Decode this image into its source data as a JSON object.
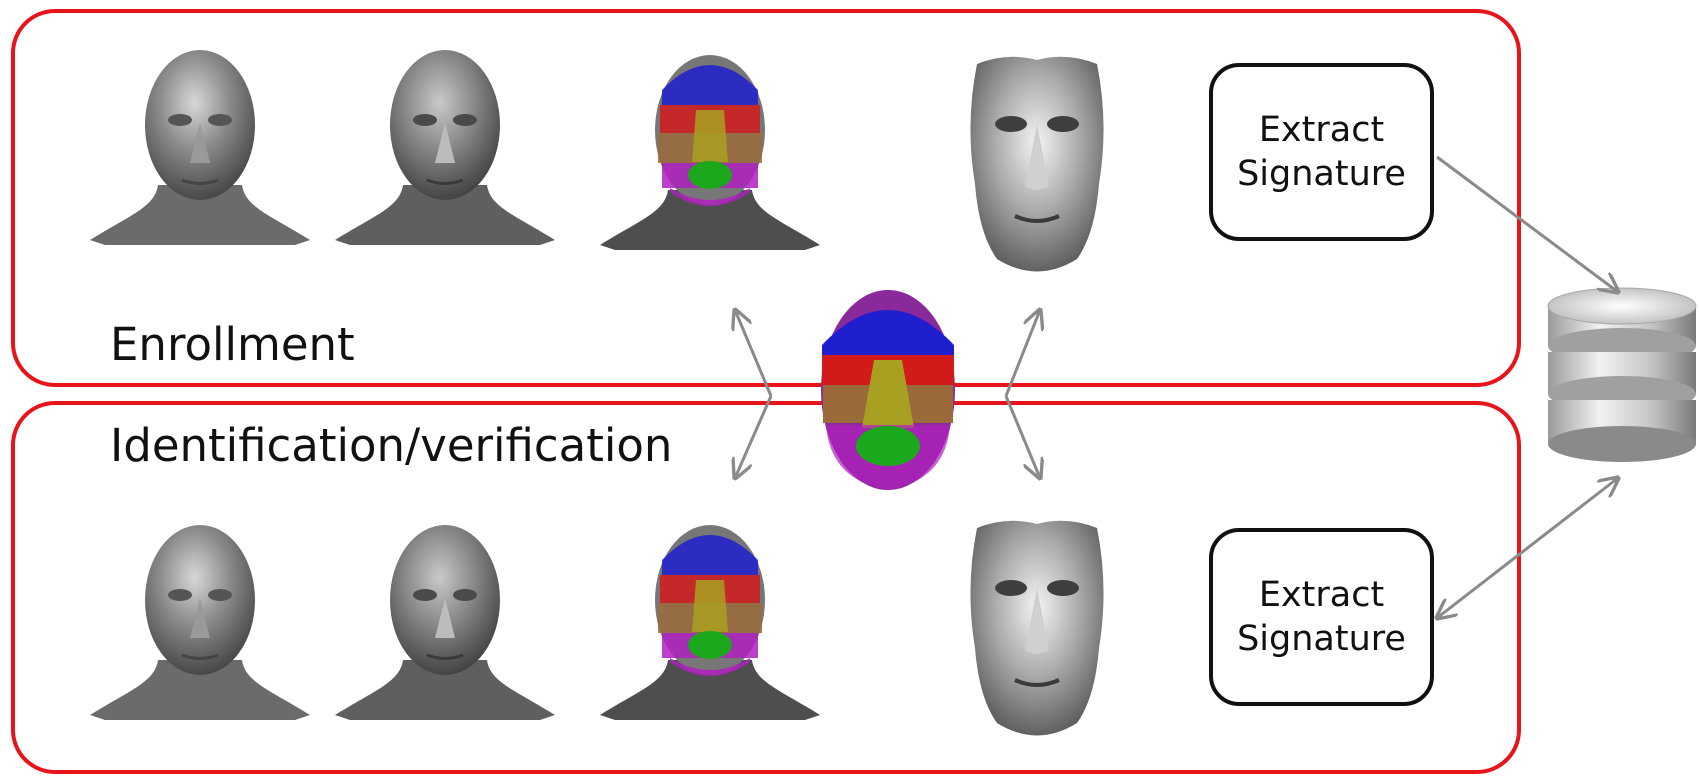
{
  "enrollment": {
    "label": "Enrollment",
    "signature_box": {
      "line1": "Extract",
      "line2": "Signature"
    }
  },
  "identification": {
    "label": "Identification/verification",
    "signature_box": {
      "line1": "Extract",
      "line2": "Signature"
    }
  },
  "colors": {
    "panel_border": "#e8141b",
    "arrow": "#8a8a8a",
    "region_forehead": "#1f1fcf",
    "region_eyes": "#d21a1a",
    "region_nose": "#a8a020",
    "region_cheeks": "#9a6a3a",
    "region_mouth": "#1ca81c",
    "region_chin": "#b020c0"
  },
  "icons": [
    "raw-face-scan-icon",
    "smoothed-face-icon",
    "segmented-face-icon",
    "annotated-face-model-icon",
    "fitted-face-mask-icon",
    "database-icon"
  ]
}
